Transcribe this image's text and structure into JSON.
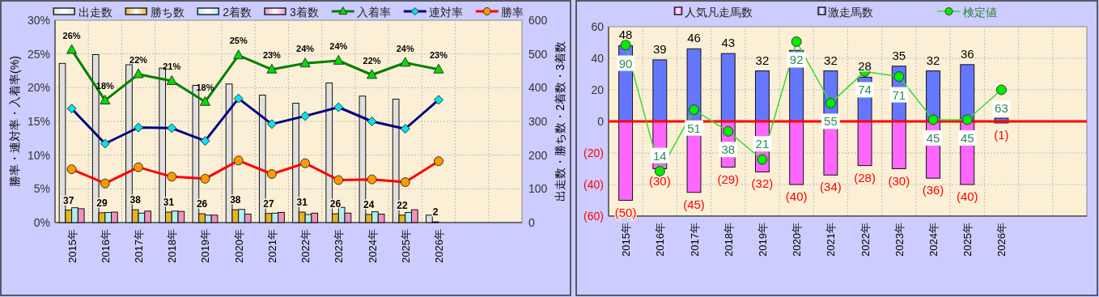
{
  "chart_data": [
    {
      "type": "bar",
      "categories": [
        "2015年",
        "2016年",
        "2017年",
        "2018年",
        "2019年",
        "2020年",
        "2021年",
        "2022年",
        "2023年",
        "2024年",
        "2025年",
        "2026年",
        null,
        null
      ],
      "ylabel": "勝率・連対率・入着率(%)",
      "y2label": "出走数・勝ち数・2着数・3着数",
      "ylim": [
        0,
        30
      ],
      "yticks": [
        {
          "value": 0,
          "label": "0%"
        },
        {
          "value": 5,
          "label": "5%"
        },
        {
          "value": 10,
          "label": "10%"
        },
        {
          "value": 15,
          "label": "15%"
        },
        {
          "value": 20,
          "label": "20%"
        },
        {
          "value": 25,
          "label": "25%"
        },
        {
          "value": 30,
          "label": "30%"
        }
      ],
      "y2lim": [
        0,
        600
      ],
      "y2ticks": [
        0,
        100,
        200,
        300,
        400,
        500,
        600
      ],
      "grid": true,
      "legend": "top",
      "series": [
        {
          "name": "出走数",
          "type": "bar",
          "axis": "y2",
          "color": "#e0e0e0",
          "values": [
            472,
            498,
            468,
            458,
            407,
            411,
            378,
            354,
            414,
            375,
            366,
            22,
            null,
            null
          ]
        },
        {
          "name": "勝ち数",
          "type": "bar",
          "axis": "y2",
          "color": "#e6b422",
          "values": [
            37,
            29,
            38,
            31,
            26,
            38,
            27,
            31,
            26,
            24,
            22,
            2,
            null,
            null
          ],
          "value_labels": [
            "37",
            "29",
            "38",
            "31",
            "26",
            "38",
            "27",
            "31",
            "26",
            "24",
            "22",
            "2",
            null,
            null
          ]
        },
        {
          "name": "2着数",
          "type": "bar",
          "axis": "y2",
          "color": "#b0f0f0",
          "values": [
            44,
            30,
            28,
            34,
            22,
            39,
            28,
            24,
            45,
            32,
            30,
            0,
            null,
            null
          ]
        },
        {
          "name": "3着数",
          "type": "bar",
          "axis": "y2",
          "color": "#f090c0",
          "values": [
            41,
            31,
            34,
            33,
            22,
            25,
            30,
            28,
            28,
            25,
            38,
            0,
            null,
            null
          ]
        },
        {
          "name": "入着率",
          "type": "line",
          "marker": "triangle",
          "color": "#008000",
          "colors": [
            "#00dd00",
            "#00dd00",
            "#00dd00",
            "#00dd00",
            "#00dd00",
            "#00dd00",
            "#00dd00",
            "#00dd00",
            "#00dd00",
            "#00dd00",
            "#00dd00",
            "#00dd00",
            null,
            null
          ],
          "values": [
            25.6,
            18.1,
            22.0,
            21.0,
            17.9,
            24.8,
            22.7,
            23.6,
            24.0,
            21.9,
            23.7,
            22.7,
            null,
            null
          ],
          "value_labels": [
            "26%",
            "18%",
            "22%",
            "21%",
            "18%",
            "25%",
            "23%",
            "24%",
            "24%",
            "22%",
            "24%",
            "23%",
            null,
            null
          ]
        },
        {
          "name": "連対率",
          "type": "line",
          "marker": "diamond",
          "color": "#000080",
          "colors": [
            "#00e5ee",
            "#00e5ee",
            "#00e5ee",
            "#00e5ee",
            "#00e5ee",
            "#00e5ee",
            "#00e5ee",
            "#00e5ee",
            "#00e5ee",
            "#00e5ee",
            "#00e5ee",
            "#00e5ee",
            null,
            null
          ],
          "values": [
            16.9,
            11.7,
            14.1,
            14.0,
            12.1,
            18.4,
            14.6,
            15.8,
            17.1,
            15.0,
            13.9,
            18.2,
            null,
            null
          ]
        },
        {
          "name": "勝率",
          "type": "line",
          "marker": "circle",
          "color": "#ff0000",
          "colors": [
            "#ff9900",
            "#ff9900",
            "#ff9900",
            "#ff9900",
            "#ff9900",
            "#ff9900",
            "#ff9900",
            "#ff9900",
            "#ff9900",
            "#ff9900",
            "#ff9900",
            "#ff9900",
            null,
            null
          ],
          "values": [
            7.9,
            5.8,
            8.2,
            6.8,
            6.5,
            9.2,
            7.2,
            8.8,
            6.3,
            6.4,
            6.0,
            9.1,
            null,
            null
          ]
        }
      ]
    },
    {
      "type": "bar",
      "stacked": true,
      "categories": [
        "2015年",
        "2016年",
        "2017年",
        "2018年",
        "2019年",
        "2020年",
        "2021年",
        "2022年",
        "2023年",
        "2024年",
        "2025年",
        "2026年",
        null,
        null
      ],
      "ylim": [
        -60,
        60
      ],
      "yticks": [
        {
          "value": -60,
          "label": "(60)"
        },
        {
          "value": -40,
          "label": "(40)"
        },
        {
          "value": -20,
          "label": "(20)"
        },
        0,
        20,
        40,
        60
      ],
      "y2lim": [
        -13,
        101
      ],
      "tick_labels": "xy",
      "grid": true,
      "legend": "top",
      "ref_lines": [
        {
          "axis": "y",
          "value": 0,
          "color": "#ff0000"
        }
      ],
      "series": [
        {
          "name": "人気凡走馬数",
          "type": "bar",
          "color": "#ff66ff",
          "values": [
            -50,
            -30,
            -45,
            -29,
            -32,
            -40,
            -34,
            -28,
            -30,
            -36,
            -40,
            -1,
            null,
            null
          ],
          "value_labels": [
            "(50)",
            "(30)",
            "(45)",
            "(29)",
            "(32)",
            "(40)",
            "(34)",
            "(28)",
            "(30)",
            "(36)",
            "(40)",
            "(1)",
            null,
            null
          ]
        },
        {
          "name": "激走馬数",
          "type": "bar",
          "color": "#6677ff",
          "values": [
            48,
            39,
            46,
            43,
            32,
            45,
            32,
            28,
            35,
            32,
            36,
            2,
            null,
            null
          ],
          "value_labels": [
            "48",
            "39",
            "46",
            "43",
            "32",
            null,
            "32",
            "28",
            "35",
            "32",
            "36",
            null,
            null,
            null
          ]
        },
        {
          "name": "検定値",
          "type": "line",
          "axis": "y2",
          "marker": "circle",
          "color": "#33dd33",
          "colors": [
            "#00ee00",
            "#00ee00",
            "#00ee00",
            "#00ee00",
            "#00ee00",
            "#00ee00",
            "#00ee00",
            "#00ee00",
            "#00ee00",
            "#00ee00",
            "#00ee00",
            "#00ee00",
            null,
            null
          ],
          "values": [
            90,
            14,
            51,
            38,
            21,
            92,
            55,
            74,
            71,
            45,
            45,
            63,
            null,
            null
          ],
          "value_labels": [
            "90",
            "14",
            "51",
            "38",
            "21",
            "92",
            "55",
            "74",
            "71",
            "45",
            "45",
            "63",
            null,
            null
          ]
        }
      ]
    }
  ]
}
